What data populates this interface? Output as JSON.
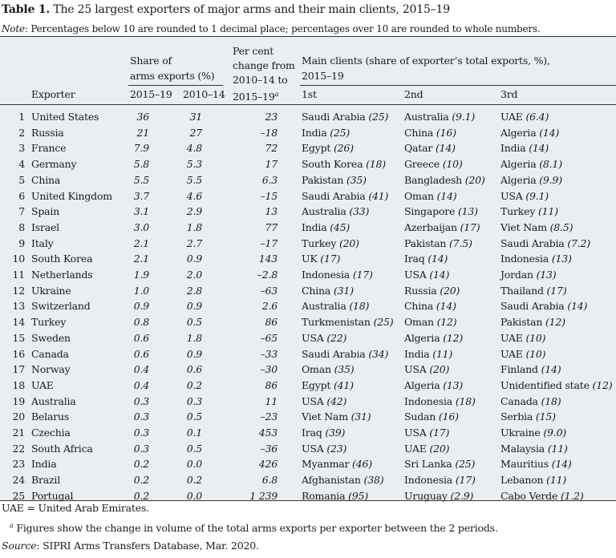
{
  "caption": {
    "label": "Table 1.",
    "title": "The 25 largest exporters of major arms and their main clients, 2015–19"
  },
  "note": {
    "label": "Note",
    "text": ": Percentages below 10 are rounded to 1 decimal place; percentages over 10 are rounded to whole numbers."
  },
  "headers": {
    "exporter": "Exporter",
    "share_l1": "Share of",
    "share_l2": "arms exports (%)",
    "share_y1": "2015–19",
    "share_y2": "2010–14",
    "pc_l1": "Per cent",
    "pc_l2": "change from",
    "pc_l3": "2010–14 to",
    "pc_l4": "2015–19",
    "pc_sup": "a",
    "clients_l1": "Main clients (share of exporter’s total exports, %),",
    "clients_l2": "2015–19",
    "client_1": "1st",
    "client_2": "2nd",
    "client_3": "3rd"
  },
  "rows": [
    {
      "rank": "1",
      "exporter": "United States",
      "s1": "36",
      "s2": "31",
      "pc": "23",
      "c1": "Saudi Arabia",
      "v1": "(25)",
      "c2": "Australia",
      "v2": "(9.1)",
      "c3": "UAE",
      "v3": "(6.4)"
    },
    {
      "rank": "2",
      "exporter": "Russia",
      "s1": "21",
      "s2": "27",
      "pc": "–18",
      "c1": "India",
      "v1": "(25)",
      "c2": "China",
      "v2": "(16)",
      "c3": "Algeria",
      "v3": "(14)"
    },
    {
      "rank": "3",
      "exporter": "France",
      "s1": "7.9",
      "s2": "4.8",
      "pc": "72",
      "c1": "Egypt",
      "v1": "(26)",
      "c2": "Qatar",
      "v2": "(14)",
      "c3": "India",
      "v3": "(14)"
    },
    {
      "rank": "4",
      "exporter": "Germany",
      "s1": "5.8",
      "s2": "5.3",
      "pc": "17",
      "c1": "South Korea",
      "v1": "(18)",
      "c2": "Greece",
      "v2": "(10)",
      "c3": "Algeria",
      "v3": "(8.1)"
    },
    {
      "rank": "5",
      "exporter": "China",
      "s1": "5.5",
      "s2": "5.5",
      "pc": "6.3",
      "c1": "Pakistan",
      "v1": "(35)",
      "c2": "Bangladesh",
      "v2": "(20)",
      "c3": "Algeria",
      "v3": "(9.9)"
    },
    {
      "rank": "6",
      "exporter": "United Kingdom",
      "s1": "3.7",
      "s2": "4.6",
      "pc": "–15",
      "c1": "Saudi Arabia",
      "v1": "(41)",
      "c2": "Oman",
      "v2": "(14)",
      "c3": "USA",
      "v3": "(9.1)"
    },
    {
      "rank": "7",
      "exporter": "Spain",
      "s1": "3.1",
      "s2": "2.9",
      "pc": "13",
      "c1": "Australia",
      "v1": "(33)",
      "c2": "Singapore",
      "v2": "(13)",
      "c3": "Turkey",
      "v3": "(11)"
    },
    {
      "rank": "8",
      "exporter": "Israel",
      "s1": "3.0",
      "s2": "1.8",
      "pc": "77",
      "c1": "India",
      "v1": "(45)",
      "c2": "Azerbaijan",
      "v2": "(17)",
      "c3": "Viet Nam",
      "v3": "(8.5)"
    },
    {
      "rank": "9",
      "exporter": "Italy",
      "s1": "2.1",
      "s2": "2.7",
      "pc": "–17",
      "c1": "Turkey",
      "v1": "(20)",
      "c2": "Pakistan",
      "v2": "(7.5)",
      "c3": "Saudi Arabia",
      "v3": "(7.2)"
    },
    {
      "rank": "10",
      "exporter": "South Korea",
      "s1": "2.1",
      "s2": "0.9",
      "pc": "143",
      "c1": "UK",
      "v1": "(17)",
      "c2": "Iraq",
      "v2": "(14)",
      "c3": "Indonesia",
      "v3": "(13)"
    },
    {
      "rank": "11",
      "exporter": "Netherlands",
      "s1": "1.9",
      "s2": "2.0",
      "pc": "–2.8",
      "c1": "Indonesia",
      "v1": "(17)",
      "c2": "USA",
      "v2": "(14)",
      "c3": "Jordan",
      "v3": "(13)"
    },
    {
      "rank": "12",
      "exporter": "Ukraine",
      "s1": "1.0",
      "s2": "2.8",
      "pc": "–63",
      "c1": "China",
      "v1": "(31)",
      "c2": "Russia",
      "v2": "(20)",
      "c3": "Thailand",
      "v3": "(17)"
    },
    {
      "rank": "13",
      "exporter": "Switzerland",
      "s1": "0.9",
      "s2": "0.9",
      "pc": "2.6",
      "c1": "Australia",
      "v1": "(18)",
      "c2": "China",
      "v2": "(14)",
      "c3": "Saudi Arabia",
      "v3": "(14)"
    },
    {
      "rank": "14",
      "exporter": "Turkey",
      "s1": "0.8",
      "s2": "0.5",
      "pc": "86",
      "c1": "Turkmenistan",
      "v1": "(25)",
      "c2": "Oman",
      "v2": "(12)",
      "c3": "Pakistan",
      "v3": "(12)"
    },
    {
      "rank": "15",
      "exporter": "Sweden",
      "s1": "0.6",
      "s2": "1.8",
      "pc": "–65",
      "c1": "USA",
      "v1": "(22)",
      "c2": "Algeria",
      "v2": "(12)",
      "c3": "UAE",
      "v3": "(10)"
    },
    {
      "rank": "16",
      "exporter": "Canada",
      "s1": "0.6",
      "s2": "0.9",
      "pc": "–33",
      "c1": "Saudi Arabia",
      "v1": "(34)",
      "c2": "India",
      "v2": "(11)",
      "c3": "UAE",
      "v3": "(10)"
    },
    {
      "rank": "17",
      "exporter": "Norway",
      "s1": "0.4",
      "s2": "0.6",
      "pc": "–30",
      "c1": "Oman",
      "v1": "(35)",
      "c2": "USA",
      "v2": "(20)",
      "c3": "Finland",
      "v3": "(14)"
    },
    {
      "rank": "18",
      "exporter": "UAE",
      "s1": "0.4",
      "s2": "0.2",
      "pc": "86",
      "c1": "Egypt",
      "v1": "(41)",
      "c2": "Algeria",
      "v2": "(13)",
      "c3": "Unidentified state",
      "v3": "(12)"
    },
    {
      "rank": "19",
      "exporter": "Australia",
      "s1": "0.3",
      "s2": "0.3",
      "pc": "11",
      "c1": "USA",
      "v1": "(42)",
      "c2": "Indonesia",
      "v2": "(18)",
      "c3": "Canada",
      "v3": "(18)"
    },
    {
      "rank": "20",
      "exporter": "Belarus",
      "s1": "0.3",
      "s2": "0.5",
      "pc": "–23",
      "c1": "Viet Nam",
      "v1": "(31)",
      "c2": "Sudan",
      "v2": "(16)",
      "c3": "Serbia",
      "v3": "(15)"
    },
    {
      "rank": "21",
      "exporter": "Czechia",
      "s1": "0.3",
      "s2": "0.1",
      "pc": "453",
      "c1": "Iraq",
      "v1": "(39)",
      "c2": "USA",
      "v2": "(17)",
      "c3": "Ukraine",
      "v3": "(9.0)"
    },
    {
      "rank": "22",
      "exporter": "South Africa",
      "s1": "0.3",
      "s2": "0.5",
      "pc": "–36",
      "c1": "USA",
      "v1": "(23)",
      "c2": "UAE",
      "v2": "(20)",
      "c3": "Malaysia",
      "v3": "(11)"
    },
    {
      "rank": "23",
      "exporter": "India",
      "s1": "0.2",
      "s2": "0.0",
      "pc": "426",
      "c1": "Myanmar",
      "v1": "(46)",
      "c2": "Sri Lanka",
      "v2": "(25)",
      "c3": "Mauritius",
      "v3": "(14)"
    },
    {
      "rank": "24",
      "exporter": "Brazil",
      "s1": "0.2",
      "s2": "0.2",
      "pc": "6.8",
      "c1": "Afghanistan",
      "v1": "(38)",
      "c2": "Indonesia",
      "v2": "(17)",
      "c3": "Lebanon",
      "v3": "(11)"
    },
    {
      "rank": "25",
      "exporter": "Portugal",
      "s1": "0.2",
      "s2": "0.0",
      "pc": "1 239",
      "c1": "Romania",
      "v1": "(95)",
      "c2": "Uruguay",
      "v2": "(2.9)",
      "c3": "Cabo Verde",
      "v3": "(1.2)"
    }
  ],
  "footnotes": {
    "abbr": "UAE = United Arab Emirates.",
    "a_mark": "a",
    "a_text": " Figures show the change in volume of the total arms exports per exporter between the 2 periods.",
    "source_label": "Source",
    "source_text": ": SIPRI Arms Transfers Database, Mar. 2020."
  }
}
